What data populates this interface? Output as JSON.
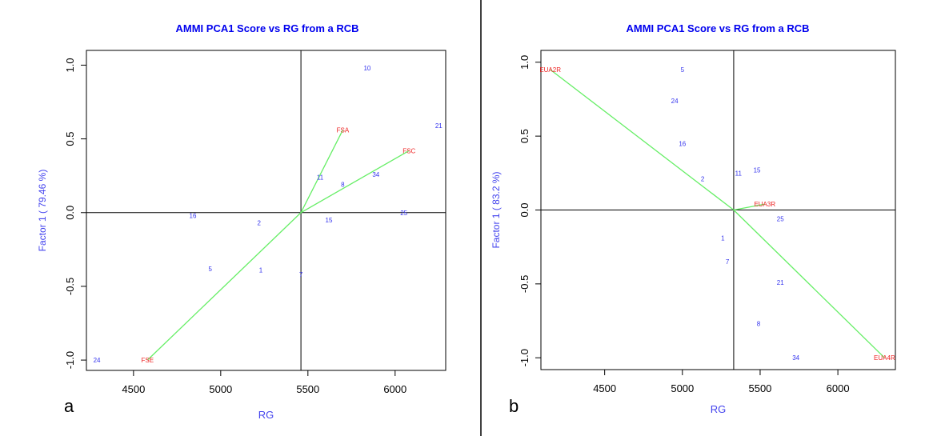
{
  "chart_data": [
    {
      "type": "scatter",
      "panel_label": "a",
      "title": "AMMI PCA1 Score vs RG from a RCB",
      "xlabel": "RG",
      "ylabel": "Factor 1 ( 79.46 %)",
      "xlim": [
        4230,
        6290
      ],
      "ylim": [
        -1.07,
        1.1
      ],
      "xticks": [
        4500,
        5000,
        5500,
        6000
      ],
      "yticks": [
        -1.0,
        -0.5,
        0.0,
        0.5,
        1.0
      ],
      "ytick_labels": [
        "-1.0",
        "-0.5",
        "0.0",
        "0.5",
        "1.0"
      ],
      "ref_x": 5460,
      "ref_y": 0,
      "genotypes": [
        {
          "label": "10",
          "x": 5840,
          "y": 0.98
        },
        {
          "label": "21",
          "x": 6250,
          "y": 0.59
        },
        {
          "label": "11",
          "x": 5570,
          "y": 0.24
        },
        {
          "label": "34",
          "x": 5890,
          "y": 0.26
        },
        {
          "label": "8",
          "x": 5700,
          "y": 0.19
        },
        {
          "label": "16",
          "x": 4840,
          "y": -0.02
        },
        {
          "label": "2",
          "x": 5220,
          "y": -0.07
        },
        {
          "label": "15",
          "x": 5620,
          "y": -0.05
        },
        {
          "label": "25",
          "x": 6050,
          "y": 0.0
        },
        {
          "label": "5",
          "x": 4940,
          "y": -0.38
        },
        {
          "label": "1",
          "x": 5230,
          "y": -0.39
        },
        {
          "label": "7",
          "x": 5460,
          "y": -0.42
        },
        {
          "label": "24",
          "x": 4290,
          "y": -1.0
        }
      ],
      "environments": [
        {
          "label": "FSA",
          "x": 5700,
          "y": 0.56
        },
        {
          "label": "FSC",
          "x": 6080,
          "y": 0.42
        },
        {
          "label": "FSE",
          "x": 4580,
          "y": -1.0
        }
      ],
      "colors": {
        "genotype": "#3333ee",
        "environment": "#ee2222",
        "vector": "#66ee66",
        "title": "#0000ee",
        "axis_label": "#4444ee"
      }
    },
    {
      "type": "scatter",
      "panel_label": "b",
      "title": "AMMI PCA1 Score vs RG from a RCB",
      "xlabel": "RG",
      "ylabel": "Factor 1 ( 83.2 %)",
      "xlim": [
        4090,
        6370
      ],
      "ylim": [
        -1.08,
        1.08
      ],
      "xticks": [
        4500,
        5000,
        5500,
        6000
      ],
      "yticks": [
        -1.0,
        -0.5,
        0.0,
        0.5,
        1.0
      ],
      "ytick_labels": [
        "-1.0",
        "-0.5",
        "0.0",
        "0.5",
        "1.0"
      ],
      "ref_x": 5330,
      "ref_y": 0,
      "genotypes": [
        {
          "label": "5",
          "x": 5000,
          "y": 0.95
        },
        {
          "label": "24",
          "x": 4950,
          "y": 0.74
        },
        {
          "label": "16",
          "x": 5000,
          "y": 0.45
        },
        {
          "label": "2",
          "x": 5130,
          "y": 0.21
        },
        {
          "label": "11",
          "x": 5360,
          "y": 0.25
        },
        {
          "label": "15",
          "x": 5480,
          "y": 0.27
        },
        {
          "label": "25",
          "x": 5630,
          "y": -0.06
        },
        {
          "label": "1",
          "x": 5260,
          "y": -0.19
        },
        {
          "label": "7",
          "x": 5290,
          "y": -0.35
        },
        {
          "label": "21",
          "x": 5630,
          "y": -0.49
        },
        {
          "label": "8",
          "x": 5490,
          "y": -0.77
        },
        {
          "label": "34",
          "x": 5730,
          "y": -1.0
        }
      ],
      "environments": [
        {
          "label": "EUA2R",
          "x": 4150,
          "y": 0.95
        },
        {
          "label": "EUA3R",
          "x": 5530,
          "y": 0.04
        },
        {
          "label": "EUA4R",
          "x": 6300,
          "y": -1.0
        }
      ],
      "colors": {
        "genotype": "#3333ee",
        "environment": "#ee2222",
        "vector": "#66ee66",
        "title": "#0000ee",
        "axis_label": "#4444ee"
      }
    }
  ]
}
